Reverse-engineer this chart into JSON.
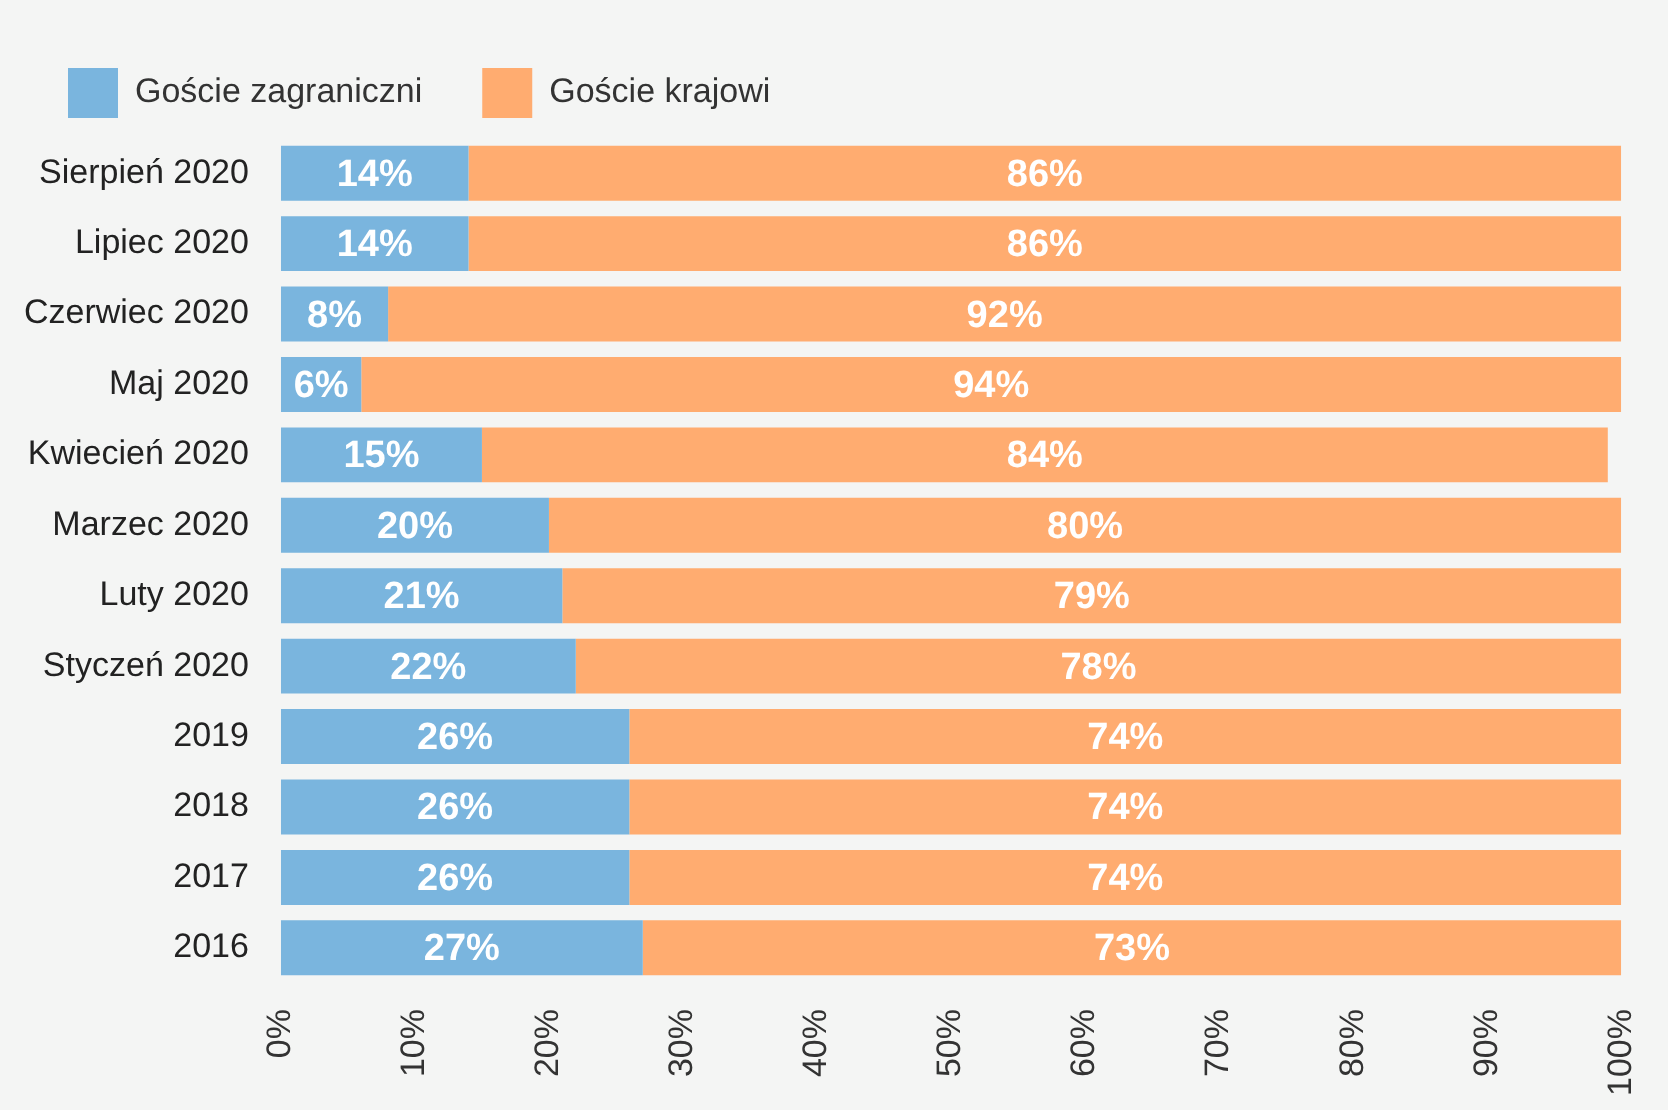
{
  "chart_data": {
    "type": "bar",
    "orientation": "horizontal",
    "stacked": true,
    "legend": "top left",
    "grid": false,
    "categories": [
      "Sierpień 2020",
      "Lipiec 2020",
      "Czerwiec 2020",
      "Maj 2020",
      "Kwiecień 2020",
      "Marzec 2020",
      "Luty 2020",
      "Styczeń 2020",
      "2019",
      "2018",
      "2017",
      "2016"
    ],
    "series": [
      {
        "name": "Goście zagraniczni",
        "color": "#7ab5de",
        "values": [
          14,
          14,
          8,
          6,
          15,
          20,
          21,
          22,
          26,
          26,
          26,
          27
        ],
        "value_labels": [
          "14%",
          "14%",
          "8%",
          "6%",
          "15%",
          "20%",
          "21%",
          "22%",
          "26%",
          "26%",
          "26%",
          "27%"
        ]
      },
      {
        "name": "Goście krajowi",
        "color": "#ffac70",
        "values": [
          86,
          86,
          92,
          94,
          84,
          80,
          79,
          78,
          74,
          74,
          74,
          73
        ],
        "value_labels": [
          "86%",
          "86%",
          "92%",
          "94%",
          "84%",
          "80%",
          "79%",
          "78%",
          "74%",
          "74%",
          "74%",
          "73%"
        ]
      }
    ],
    "xlim": [
      0,
      100
    ],
    "xticks": [
      {
        "value": 0,
        "label": "0%"
      },
      {
        "value": 10,
        "label": "10%"
      },
      {
        "value": 20,
        "label": "20%"
      },
      {
        "value": 30,
        "label": "30%"
      },
      {
        "value": 40,
        "label": "40%"
      },
      {
        "value": 50,
        "label": "50%"
      },
      {
        "value": 60,
        "label": "60%"
      },
      {
        "value": 70,
        "label": "70%"
      },
      {
        "value": 80,
        "label": "80%"
      },
      {
        "value": 90,
        "label": "90%"
      },
      {
        "value": 100,
        "label": "100%"
      }
    ]
  }
}
